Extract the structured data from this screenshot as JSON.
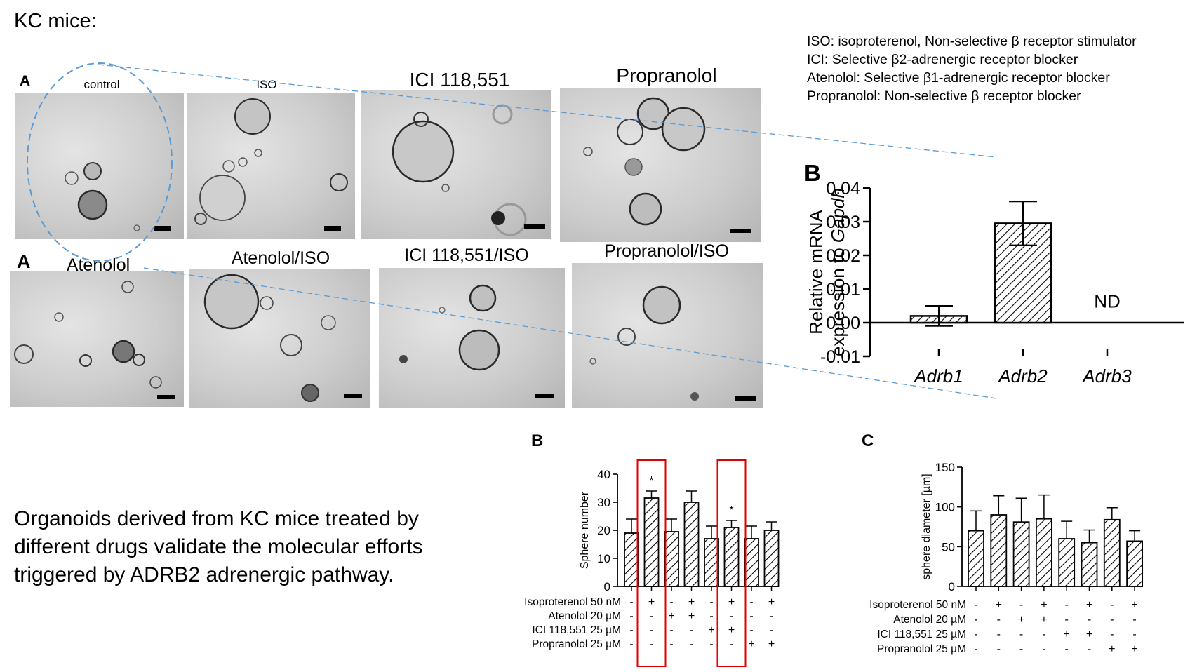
{
  "page_title": "KC mice:",
  "abbreviations": [
    "ISO: isoproterenol, Non-selective β receptor stimulator",
    "ICI: Selective β2-adrenergic receptor blocker",
    "Atenolol: Selective β1-adrenergic receptor blocker",
    "Propranolol: Non-selective β receptor blocker"
  ],
  "panel_a": {
    "letter": "A",
    "top_row": [
      "control",
      "ISO",
      "ICI 118,551",
      "Propranolol"
    ],
    "bottom_row": [
      "Atenolol",
      "Atenolol/ISO",
      "ICI 118,551/ISO",
      "Propranolol/ISO"
    ]
  },
  "summary_lines": [
    "Organoids derived from KC mice treated by",
    "different drugs validate the molecular efforts",
    "triggered by ADRB2 adrenergic pathway."
  ],
  "chart_data": [
    {
      "id": "mrna",
      "letter": "B",
      "type": "bar",
      "ylabel_line1": "Relative mRNA",
      "ylabel_line2_prefix": "expression to ",
      "ylabel_line2_italic": "Gapdh",
      "categories": [
        "Adrb1",
        "Adrb2",
        "Adrb3"
      ],
      "values": [
        0.002,
        0.0295,
        null
      ],
      "errors": [
        0.003,
        0.0065,
        null
      ],
      "na_label": "ND",
      "ylim": [
        -0.01,
        0.04
      ],
      "yticks": [
        "0.04",
        "0.03",
        "0.02",
        "0.01",
        "0.00",
        "-0.01"
      ]
    },
    {
      "id": "sphere-number",
      "letter": "B",
      "type": "bar",
      "ylabel": "Sphere number",
      "ylim": [
        0,
        40
      ],
      "yticks": [
        "40",
        "30",
        "20",
        "10",
        "0"
      ],
      "values": [
        19,
        31.5,
        19.5,
        30,
        17,
        21,
        17,
        20
      ],
      "errors": [
        5,
        2.5,
        4.5,
        4,
        4.5,
        2.5,
        4.5,
        3
      ],
      "significance": [
        "",
        "*",
        "",
        "",
        "",
        "*",
        "",
        ""
      ],
      "highlighted_bars": [
        1,
        5
      ],
      "treatments": [
        {
          "name": "Isoproterenol 50 nM",
          "marks": [
            "-",
            "+",
            "-",
            "+",
            "-",
            "+",
            "-",
            "+"
          ]
        },
        {
          "name": "Atenolol 20 µM",
          "marks": [
            "-",
            "-",
            "+",
            "+",
            "-",
            "-",
            "-",
            "-"
          ]
        },
        {
          "name": "ICI 118,551 25 µM",
          "marks": [
            "-",
            "-",
            "-",
            "-",
            "+",
            "+",
            "-",
            "-"
          ]
        },
        {
          "name": "Propranolol 25 µM",
          "marks": [
            "-",
            "-",
            "-",
            "-",
            "-",
            "-",
            "+",
            "+"
          ]
        }
      ]
    },
    {
      "id": "sphere-diameter",
      "letter": "C",
      "type": "bar",
      "ylabel": "sphere diameter [µm]",
      "ylim": [
        0,
        150
      ],
      "yticks": [
        "150",
        "100",
        "50",
        "0"
      ],
      "values": [
        70,
        90,
        81,
        85,
        60,
        55,
        84,
        57
      ],
      "errors": [
        25,
        24,
        30,
        30,
        22,
        16,
        15,
        13
      ],
      "treatments": [
        {
          "name": "Isoproterenol 50 nM",
          "marks": [
            "-",
            "+",
            "-",
            "+",
            "-",
            "+",
            "-",
            "+"
          ]
        },
        {
          "name": "Atenolol 20 µM",
          "marks": [
            "-",
            "-",
            "+",
            "+",
            "-",
            "-",
            "-",
            "-"
          ]
        },
        {
          "name": "ICI 118,551 25 µM",
          "marks": [
            "-",
            "-",
            "-",
            "-",
            "+",
            "+",
            "-",
            "-"
          ]
        },
        {
          "name": "Propranolol 25 µM",
          "marks": [
            "-",
            "-",
            "-",
            "-",
            "-",
            "-",
            "+",
            "+"
          ]
        }
      ]
    }
  ]
}
